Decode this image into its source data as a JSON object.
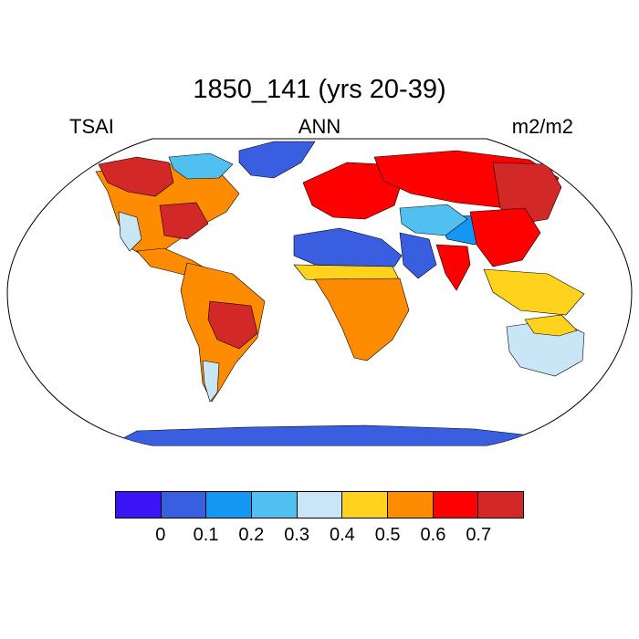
{
  "title": "1850_141 (yrs 20-39)",
  "left_label": "TSAI",
  "center_label": "ANN",
  "right_label": "m2/m2",
  "colorbar": {
    "colors": [
      "#3a14f5",
      "#3a5ee0",
      "#1496f5",
      "#50c0f0",
      "#c8e6f5",
      "#ffd21e",
      "#ff8c00",
      "#ff0000",
      "#d22828"
    ],
    "labels": [
      "0",
      "0.1",
      "0.2",
      "0.3",
      "0.4",
      "0.5",
      "0.6",
      "0.7"
    ]
  },
  "map_regions": [
    {
      "name": "greenland",
      "level": 1
    },
    {
      "name": "north-america-interior",
      "level": 6
    },
    {
      "name": "canada-north",
      "level": 8
    },
    {
      "name": "arctic-canada",
      "level": 3
    },
    {
      "name": "western-usa",
      "level": 4
    },
    {
      "name": "eastern-usa",
      "level": 8
    },
    {
      "name": "central-america",
      "level": 6
    },
    {
      "name": "south-america",
      "level": 6
    },
    {
      "name": "brazil-central",
      "level": 8
    },
    {
      "name": "patagonia",
      "level": 4
    },
    {
      "name": "europe",
      "level": 7
    },
    {
      "name": "russia",
      "level": 7
    },
    {
      "name": "siberia-east",
      "level": 8
    },
    {
      "name": "sahara",
      "level": 1
    },
    {
      "name": "sahel",
      "level": 5
    },
    {
      "name": "africa-central",
      "level": 6
    },
    {
      "name": "arabia",
      "level": 1
    },
    {
      "name": "tibet",
      "level": 2
    },
    {
      "name": "central-asia",
      "level": 3
    },
    {
      "name": "china",
      "level": 7
    },
    {
      "name": "india",
      "level": 7
    },
    {
      "name": "southeast-asia",
      "level": 5
    },
    {
      "name": "australia-interior",
      "level": 4
    },
    {
      "name": "australia-coast",
      "level": 5
    },
    {
      "name": "antarctica",
      "level": 1
    }
  ]
}
